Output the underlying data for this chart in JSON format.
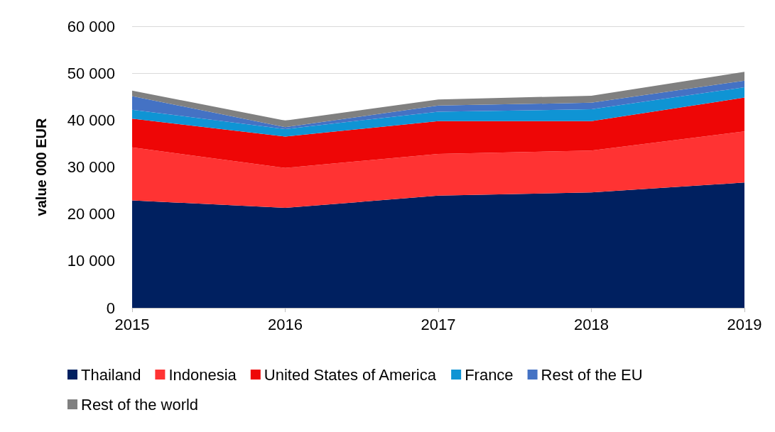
{
  "chart_data": {
    "type": "area",
    "stacked": true,
    "ylabel": "value 000 EUR",
    "categories": [
      "2015",
      "2016",
      "2017",
      "2018",
      "2019"
    ],
    "series": [
      {
        "name": "Thailand",
        "color": "#002060",
        "values": [
          22900,
          21300,
          23900,
          24600,
          26700
        ]
      },
      {
        "name": "Indonesia",
        "color": "#ff3333",
        "values": [
          11300,
          8500,
          8900,
          8900,
          10900
        ]
      },
      {
        "name": "United States of America",
        "color": "#ee0606",
        "values": [
          6100,
          6700,
          7000,
          6300,
          7200
        ]
      },
      {
        "name": "France",
        "color": "#0f94d4",
        "values": [
          1900,
          1600,
          2000,
          2500,
          2200
        ]
      },
      {
        "name": "Rest of the EU",
        "color": "#4472c4",
        "values": [
          2900,
          400,
          1300,
          1400,
          1400
        ]
      },
      {
        "name": "Rest of the world",
        "color": "#808080",
        "values": [
          1200,
          1400,
          1300,
          1500,
          1900
        ]
      }
    ],
    "ylim": [
      0,
      60000
    ],
    "yticks": [
      {
        "value": 0,
        "label": "0"
      },
      {
        "value": 10000,
        "label": "10 000"
      },
      {
        "value": 20000,
        "label": "20 000"
      },
      {
        "value": 30000,
        "label": "30 000"
      },
      {
        "value": 40000,
        "label": "40 000"
      },
      {
        "value": 50000,
        "label": "50 000"
      },
      {
        "value": 60000,
        "label": "60 000"
      }
    ],
    "grid": "y",
    "legend": "bottom"
  }
}
